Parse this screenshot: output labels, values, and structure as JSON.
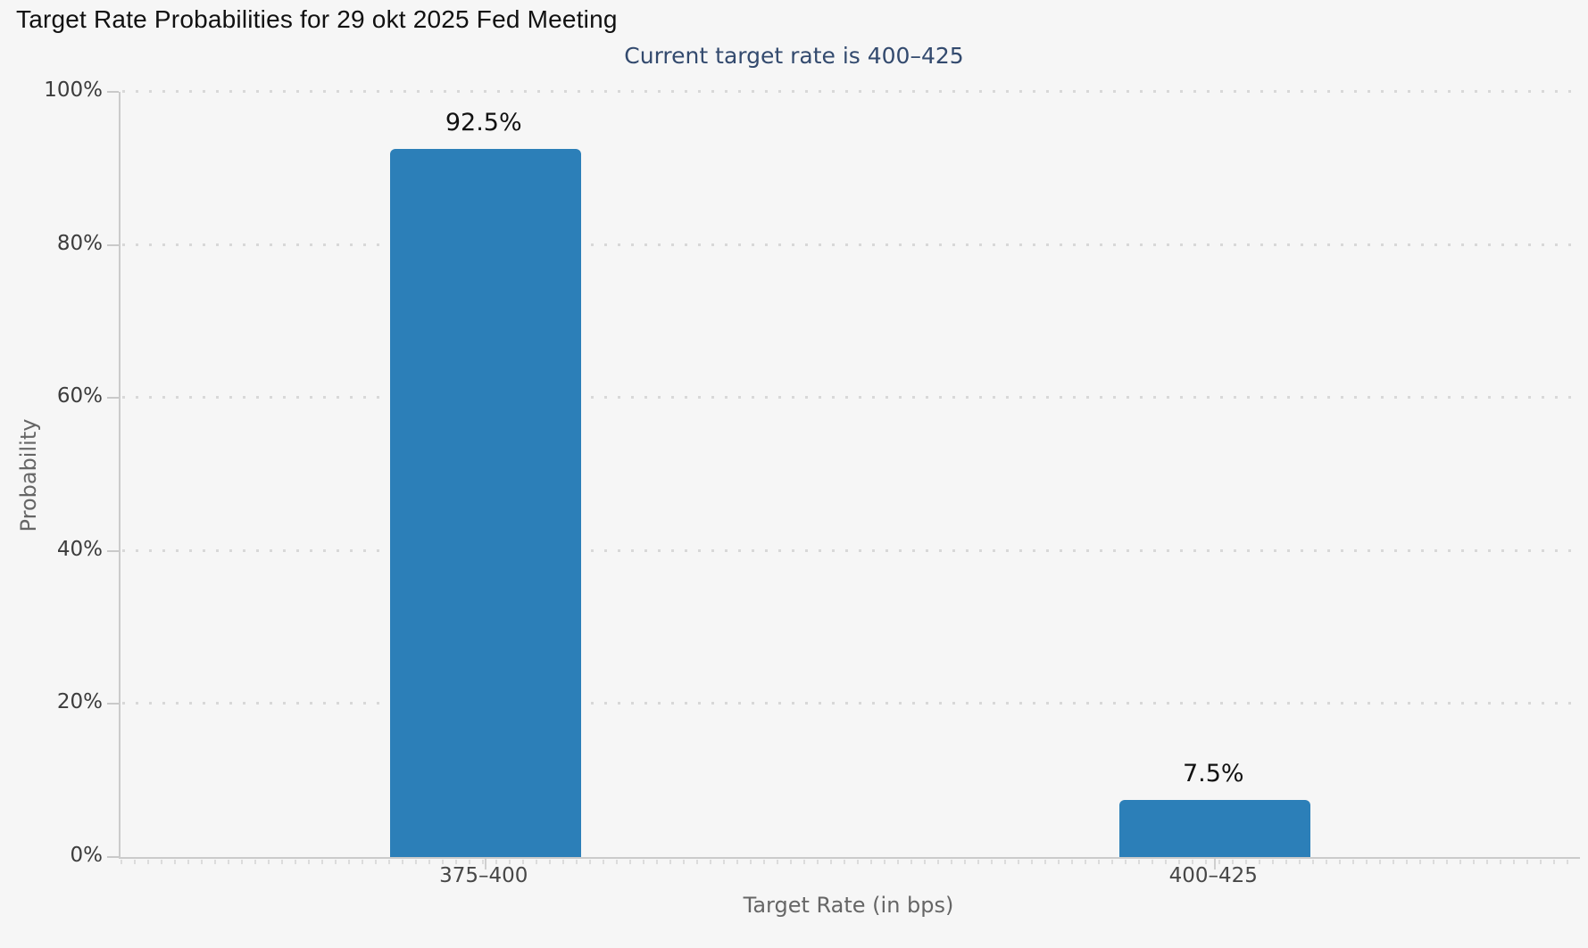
{
  "page": {
    "background": "#f6f6f6"
  },
  "header": {
    "title": "Target Rate Probabilities for 29 okt 2025 Fed Meeting",
    "subtitle": "Current target rate is 400–425"
  },
  "chart_data": {
    "type": "bar",
    "title": "Target Rate Probabilities for 29 okt 2025 Fed Meeting",
    "subtitle": "Current target rate is 400–425",
    "categories": [
      "375–400",
      "400–425"
    ],
    "values": [
      92.5,
      7.5
    ],
    "value_labels": [
      "92.5%",
      "7.5%"
    ],
    "xlabel": "Target Rate (in bps)",
    "ylabel": "Probability",
    "ylim": [
      0,
      100
    ],
    "yticks": [
      0,
      20,
      40,
      60,
      80,
      100
    ],
    "ytick_labels": [
      "0%",
      "20%",
      "40%",
      "60%",
      "80%",
      "100%"
    ],
    "bar_color": "#2c7fb8",
    "grid": "dotted-horizontal",
    "legend_visible": false
  }
}
